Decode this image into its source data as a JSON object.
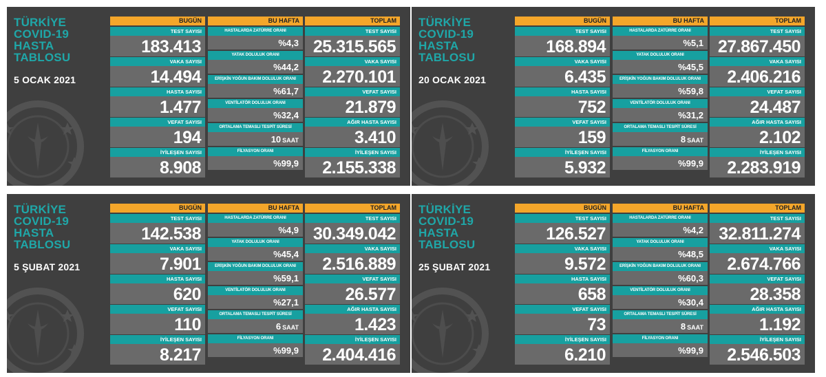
{
  "labels": {
    "title": [
      "TÜRKİYE",
      "COVID-19",
      "HASTA",
      "TABLOSU"
    ],
    "bugun": "BUGÜN",
    "bu_hafta": "BU HAFTA",
    "toplam": "TOPLAM",
    "test": "TEST SAYISI",
    "vaka": "VAKA SAYISI",
    "hasta": "HASTA SAYISI",
    "vefat": "VEFAT SAYISI",
    "iyilesen": "İYİLEŞEN SAYISI",
    "agir": "AĞIR HASTA SAYISI",
    "zaturre": "HASTALARDA ZATÜRRE ORANI",
    "yatak": "YATAK DOLULUK ORANI",
    "yogun": "ERİŞKİN YOĞUN BAKIM DOLULUK ORANI",
    "ventilator": "VENTİLATÖR DOLULUK ORANI",
    "temasli": "ORTALAMA TEMASLI TESPİT SÜRESİ",
    "filyasyon": "FİLYASYON ORANI",
    "saat": "SAAT"
  },
  "emblem": "ministry-emblem-watermark",
  "panels": [
    {
      "date": "5 OCAK 2021",
      "today": {
        "test": "183.413",
        "vaka": "14.494",
        "hasta": "1.477",
        "vefat": "194",
        "iyilesen": "8.908"
      },
      "week": {
        "zaturre": "%4,3",
        "yatak": "%44,2",
        "yogun": "%61,7",
        "ventilator": "%32,4",
        "temasli": "10",
        "filyasyon": "%99,9"
      },
      "total": {
        "test": "25.315.565",
        "vaka": "2.270.101",
        "vefat": "21.879",
        "agir": "3.410",
        "iyilesen": "2.155.338"
      }
    },
    {
      "date": "20 OCAK 2021",
      "today": {
        "test": "168.894",
        "vaka": "6.435",
        "hasta": "752",
        "vefat": "159",
        "iyilesen": "5.932"
      },
      "week": {
        "zaturre": "%5,1",
        "yatak": "%45,5",
        "yogun": "%59,8",
        "ventilator": "%31,2",
        "temasli": "8",
        "filyasyon": "%99,9"
      },
      "total": {
        "test": "27.867.450",
        "vaka": "2.406.216",
        "vefat": "24.487",
        "agir": "2.102",
        "iyilesen": "2.283.919"
      }
    },
    {
      "date": "5 ŞUBAT 2021",
      "today": {
        "test": "142.538",
        "vaka": "7.901",
        "hasta": "620",
        "vefat": "110",
        "iyilesen": "8.217"
      },
      "week": {
        "zaturre": "%4,9",
        "yatak": "%45,4",
        "yogun": "%59,1",
        "ventilator": "%27,1",
        "temasli": "6",
        "filyasyon": "%99,9"
      },
      "total": {
        "test": "30.349.042",
        "vaka": "2.516.889",
        "vefat": "26.577",
        "agir": "1.423",
        "iyilesen": "2.404.416"
      }
    },
    {
      "date": "25 ŞUBAT 2021",
      "today": {
        "test": "126.527",
        "vaka": "9.572",
        "hasta": "658",
        "vefat": "73",
        "iyilesen": "6.210"
      },
      "week": {
        "zaturre": "%4,2",
        "yatak": "%48,5",
        "yogun": "%60,3",
        "ventilator": "%30,4",
        "temasli": "8",
        "filyasyon": "%99,9"
      },
      "total": {
        "test": "32.811.274",
        "vaka": "2.674.766",
        "vefat": "28.358",
        "agir": "1.192",
        "iyilesen": "2.546.503"
      }
    }
  ]
}
